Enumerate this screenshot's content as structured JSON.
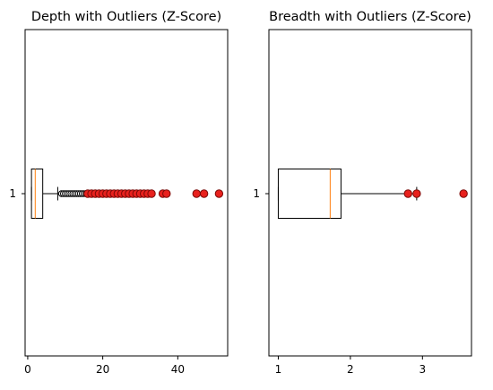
{
  "chart_data": [
    {
      "type": "box",
      "orientation": "horizontal",
      "title": "Depth with Outliers (Z-Score)",
      "xlim": [
        -0.7,
        53.3
      ],
      "xticks": [
        0,
        20,
        40
      ],
      "xtick_labels": [
        "0",
        "20",
        "40"
      ],
      "ytick_labels": [
        "1"
      ],
      "grid": false,
      "box": {
        "whisker_low": 1.0,
        "q1": 1.0,
        "median": 2.0,
        "q3": 4.0,
        "whisker_high": 8.0
      },
      "outliers": [
        9,
        9.5,
        10,
        10.5,
        11,
        11.5,
        12,
        12.5,
        13,
        13.5,
        14,
        14.5,
        15,
        15.5,
        16,
        16.5,
        17,
        17.5,
        18,
        18.5,
        19,
        19.5,
        20,
        20.5,
        21,
        21.5,
        22,
        22.5,
        23,
        23.5,
        24,
        25,
        25.5,
        26,
        27,
        27.5,
        28,
        29,
        30,
        31,
        32,
        33,
        36,
        37,
        45,
        47,
        51
      ],
      "zscore_outliers": [
        16,
        17,
        18,
        19,
        20,
        21,
        22,
        23,
        24,
        25,
        26,
        27,
        28,
        29,
        30,
        31,
        32,
        33,
        36,
        37,
        45,
        47,
        51
      ],
      "colors": {
        "box": "#000000",
        "median": "#ff7f0e",
        "zscore_marker": "#e8211d",
        "flier_face": "#ffffff"
      }
    },
    {
      "type": "box",
      "orientation": "horizontal",
      "title": "Breadth with Outliers (Z-Score)",
      "xlim": [
        0.87,
        3.68
      ],
      "xticks": [
        1,
        2,
        3
      ],
      "xtick_labels": [
        "1",
        "2",
        "3"
      ],
      "ytick_labels": [
        "1"
      ],
      "grid": false,
      "box": {
        "whisker_low": 1.0,
        "q1": 1.0,
        "median": 1.72,
        "q3": 1.87,
        "whisker_high": 2.92
      },
      "outliers": [
        2.8,
        2.92,
        3.57
      ],
      "zscore_outliers": [
        2.8,
        2.92,
        3.57
      ],
      "colors": {
        "box": "#000000",
        "median": "#ff7f0e",
        "zscore_marker": "#e8211d",
        "flier_face": "#ffffff"
      }
    }
  ]
}
